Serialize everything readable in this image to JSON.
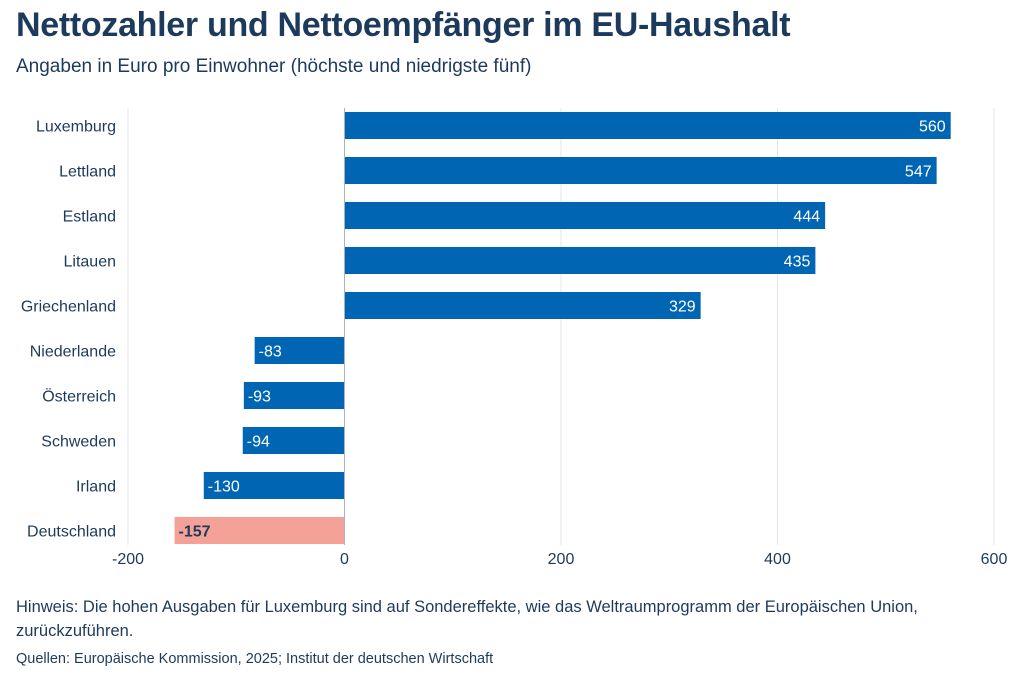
{
  "chart_data": {
    "type": "bar",
    "orientation": "horizontal",
    "title": "Nettozahler und Nettoempfänger im EU-Haushalt",
    "subtitle": "Angaben in Euro pro Einwohner (höchste und niedrigste fünf)",
    "categories": [
      "Luxemburg",
      "Lettland",
      "Estland",
      "Litauen",
      "Griechenland",
      "Niederlande",
      "Österreich",
      "Schweden",
      "Irland",
      "Deutschland"
    ],
    "values": [
      560,
      547,
      444,
      435,
      329,
      -83,
      -93,
      -94,
      -130,
      -157
    ],
    "highlight": "Deutschland",
    "xlim": [
      -200,
      600
    ],
    "xticks": [
      "-200",
      "0",
      "200",
      "400",
      "600"
    ],
    "grid": true,
    "colors": {
      "bar": "#0066b3",
      "highlight": "#f4a198",
      "text": "#1c3a5c"
    },
    "note": "Hinweis: Die hohen Ausgaben für Luxemburg sind auf Sondereffekte, wie das Weltraumprogramm der Europäischen Union, zurückzuführen.",
    "source": "Quellen: Europäische Kommission, 2025; Institut der deutschen Wirtschaft"
  }
}
